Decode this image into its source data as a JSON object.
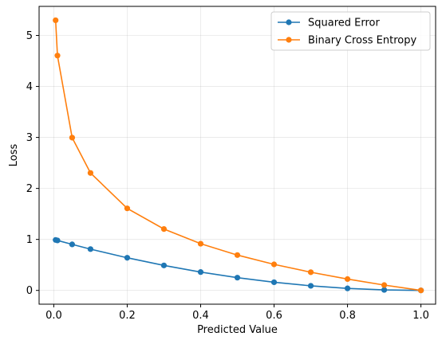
{
  "chart_data": {
    "type": "line",
    "title": "",
    "xlabel": "Predicted Value",
    "ylabel": "Loss",
    "xlim": [
      -0.04,
      1.04
    ],
    "ylim": [
      -0.27,
      5.57
    ],
    "xticks": [
      0.0,
      0.2,
      0.4,
      0.6,
      0.8,
      1.0
    ],
    "xtick_labels": [
      "0.0",
      "0.2",
      "0.4",
      "0.6",
      "0.8",
      "1.0"
    ],
    "yticks": [
      0,
      1,
      2,
      3,
      4,
      5
    ],
    "ytick_labels": [
      "0",
      "1",
      "2",
      "3",
      "4",
      "5"
    ],
    "grid": true,
    "legend_position": "top-right",
    "x": [
      0.005,
      0.01,
      0.05,
      0.1,
      0.2,
      0.3,
      0.4,
      0.5,
      0.6,
      0.7,
      0.8,
      0.9,
      1.0
    ],
    "series": [
      {
        "name": "Squared Error",
        "color": "#1f77b4",
        "values": [
          0.99,
          0.98,
          0.9025,
          0.81,
          0.64,
          0.49,
          0.36,
          0.25,
          0.16,
          0.09,
          0.04,
          0.01,
          0.0
        ]
      },
      {
        "name": "Binary Cross Entropy",
        "color": "#ff7f0e",
        "values": [
          5.298,
          4.605,
          2.996,
          2.303,
          1.609,
          1.204,
          0.916,
          0.693,
          0.511,
          0.357,
          0.223,
          0.105,
          0.0
        ]
      }
    ]
  }
}
